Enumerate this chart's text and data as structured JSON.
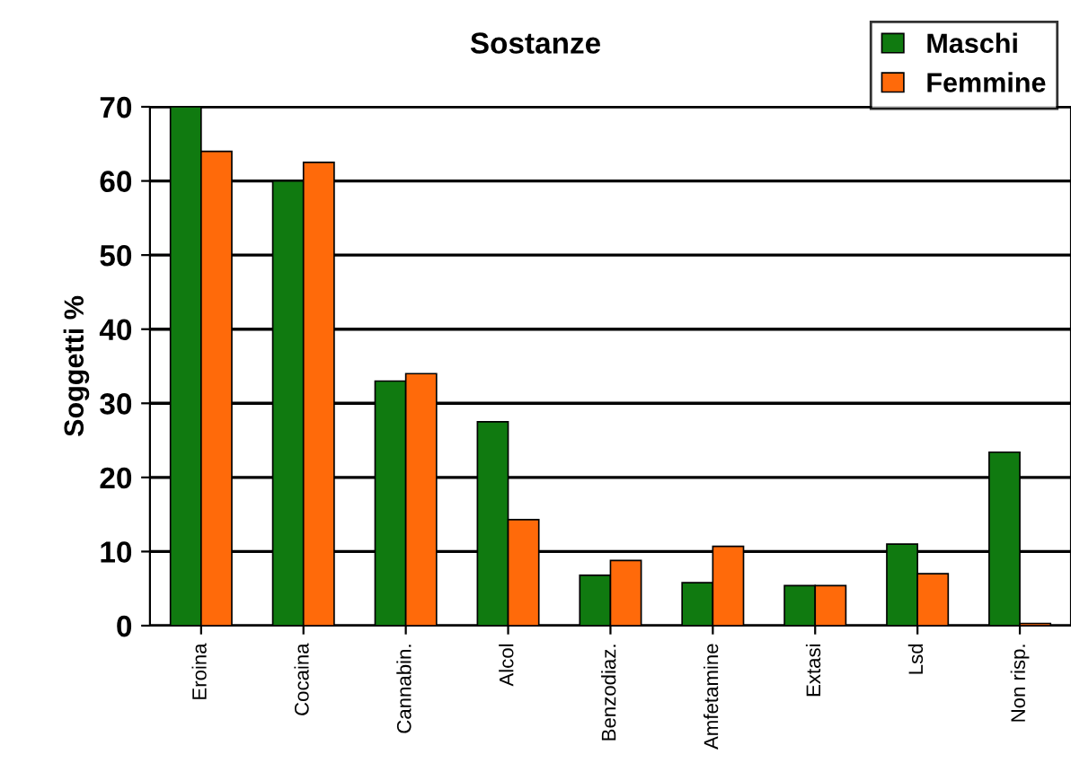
{
  "chart_data": {
    "type": "bar",
    "title": "Sostanze",
    "ylabel": "Soggetti %",
    "categories": [
      "Eroina",
      "Cocaina",
      "Cannabin.",
      "Alcol",
      "Benzodiaz.",
      "Amfetamine",
      "Extasi",
      "Lsd",
      "Non risp."
    ],
    "series": [
      {
        "name": "Maschi",
        "color": "#107a10",
        "values": [
          70,
          60,
          33,
          27.5,
          6.8,
          5.8,
          5.4,
          11,
          23.4
        ]
      },
      {
        "name": "Femmine",
        "color": "#ff6a0a",
        "values": [
          64,
          62.5,
          34,
          14.3,
          8.8,
          10.7,
          5.4,
          7,
          0.3
        ]
      }
    ],
    "ylim": [
      0,
      70
    ],
    "yticks": [
      0,
      10,
      20,
      30,
      40,
      50,
      60,
      70
    ],
    "grid": "y",
    "legend": "top right"
  }
}
